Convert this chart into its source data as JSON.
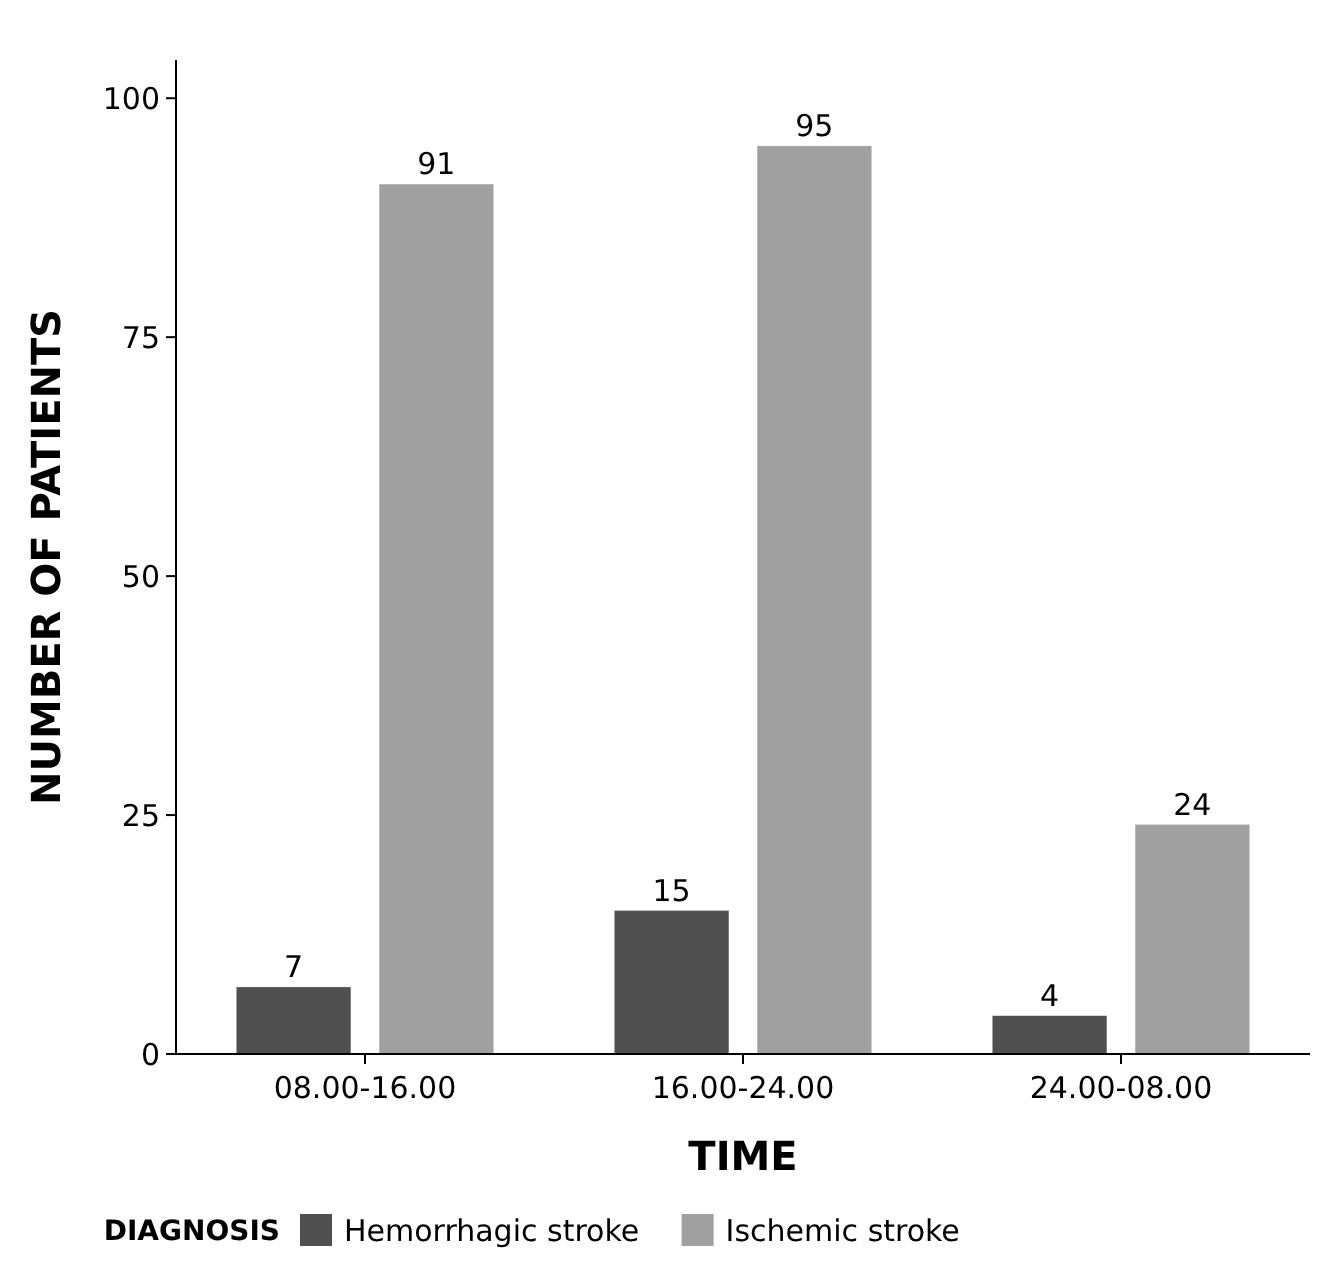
{
  "chart_data": {
    "type": "bar",
    "xlabel": "TIME",
    "ylabel": "NUMBER OF PATIENTS",
    "legend_title": "DIAGNOSIS",
    "categories": [
      "08.00-16.00",
      "16.00-24.00",
      "24.00-08.00"
    ],
    "series": [
      {
        "name": "Hemorrhagic stroke",
        "color": "#505050",
        "values": [
          7,
          15,
          4
        ]
      },
      {
        "name": "Ischemic stroke",
        "color": "#a0a0a0",
        "values": [
          91,
          95,
          24
        ]
      }
    ],
    "ylim": [
      0,
      104
    ],
    "yticks": [
      0,
      25,
      50,
      75,
      100
    ],
    "data_labels": true,
    "legend": "bottom",
    "grid": false
  }
}
